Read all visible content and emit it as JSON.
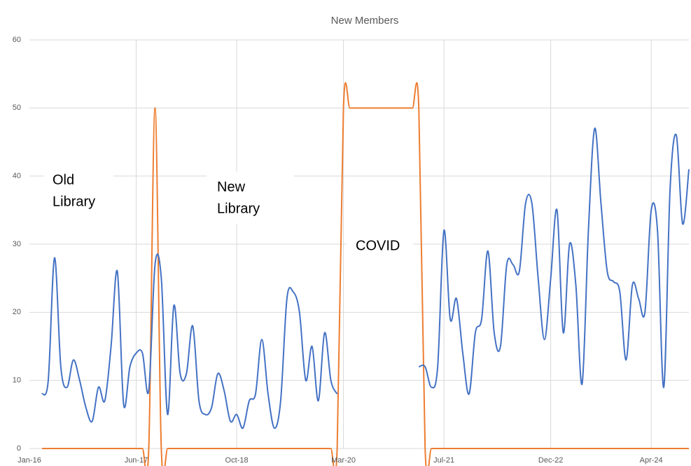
{
  "chart_data": {
    "type": "line",
    "title": "New Members",
    "categories": [
      "Jan-16",
      null,
      null,
      null,
      null,
      null,
      null,
      null,
      null,
      null,
      null,
      null,
      null,
      null,
      null,
      null,
      null,
      "Jun-17",
      null,
      null,
      null,
      null,
      null,
      null,
      null,
      null,
      null,
      null,
      null,
      null,
      null,
      null,
      null,
      "Oct-18",
      null,
      null,
      null,
      null,
      null,
      null,
      null,
      null,
      null,
      null,
      null,
      null,
      null,
      null,
      null,
      null,
      "Mar-20",
      null,
      null,
      null,
      null,
      null,
      null,
      null,
      null,
      null,
      null,
      null,
      null,
      null,
      null,
      null,
      "Jul-21",
      null,
      null,
      null,
      null,
      null,
      null,
      null,
      null,
      null,
      null,
      null,
      null,
      null,
      null,
      null,
      null,
      "Dec-22",
      null,
      null,
      null,
      null,
      null,
      null,
      null,
      null,
      null,
      null,
      null,
      null,
      null,
      null,
      null,
      "Apr-24",
      null,
      null,
      null,
      null,
      null,
      null
    ],
    "series": [
      {
        "color": "#4472c4",
        "values": [
          null,
          null,
          8,
          10,
          28,
          12,
          9,
          13,
          10,
          6,
          4,
          9,
          7,
          15,
          26,
          6.5,
          12,
          14,
          14,
          8.5,
          27,
          25,
          5,
          21,
          11,
          11,
          18,
          7,
          5,
          6,
          11,
          8.5,
          4,
          5,
          3,
          7,
          8,
          16,
          8,
          3,
          7,
          22,
          23,
          20,
          10,
          15,
          7,
          17,
          10,
          8,
          null,
          null,
          null,
          null,
          null,
          null,
          null,
          null,
          null,
          null,
          null,
          null,
          12,
          12,
          9,
          12,
          32,
          19,
          22,
          14,
          8,
          17,
          19,
          29,
          17,
          15,
          27,
          27,
          26,
          36,
          36,
          25,
          16,
          25,
          35,
          17,
          30,
          24,
          9.5,
          32,
          47,
          36,
          26,
          24.5,
          23,
          13,
          24,
          22,
          20,
          35,
          32,
          9,
          38,
          46,
          33,
          41
        ]
      },
      {
        "color": "#ed7d31",
        "values": [
          null,
          null,
          0,
          0,
          0,
          0,
          0,
          0,
          0,
          0,
          0,
          0,
          0,
          0,
          0,
          0,
          0,
          0,
          0,
          0,
          50,
          0,
          0,
          0,
          0,
          0,
          0,
          0,
          0,
          0,
          0,
          0,
          0,
          0,
          0,
          0,
          0,
          0,
          0,
          0,
          0,
          0,
          0,
          0,
          0,
          0,
          0,
          0,
          0,
          0,
          50,
          50,
          50,
          50,
          50,
          50,
          50,
          50,
          50,
          50,
          50,
          50,
          50,
          0,
          0,
          0,
          0,
          0,
          0,
          0,
          0,
          0,
          0,
          0,
          0,
          0,
          0,
          0,
          0,
          0,
          0,
          0,
          0,
          0,
          0,
          0,
          0,
          0,
          0,
          0,
          0,
          0,
          0,
          0,
          0,
          0,
          0,
          0,
          0,
          0,
          0,
          0,
          0,
          0,
          0,
          0
        ]
      }
    ],
    "ylim": [
      0,
      60
    ],
    "yticks": [
      0,
      10,
      20,
      30,
      40,
      50,
      60
    ],
    "grid": true,
    "annotations": [
      {
        "lines": [
          "Old",
          "Library"
        ]
      },
      {
        "lines": [
          "New",
          "Library"
        ]
      },
      {
        "lines": [
          "COVID"
        ]
      }
    ]
  }
}
